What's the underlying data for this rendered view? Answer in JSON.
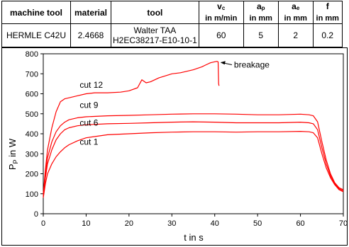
{
  "table": {
    "headers": [
      {
        "main": "machine tool",
        "sub": "",
        "unit": ""
      },
      {
        "main": "material",
        "sub": "",
        "unit": ""
      },
      {
        "main": "tool",
        "sub": "",
        "unit": ""
      },
      {
        "main": "v",
        "sub": "c",
        "unit": "in m/min"
      },
      {
        "main": "a",
        "sub": "p",
        "unit": "in mm"
      },
      {
        "main": "a",
        "sub": "e",
        "unit": "in mm"
      },
      {
        "main": "f",
        "sub": "",
        "unit": "in mm"
      }
    ],
    "row": {
      "machine_tool": "HERMLE C42U",
      "material": "2.4668",
      "tool_line1": "Walter TAA",
      "tool_line2": "H2EC38217-E10-10-1",
      "vc": "60",
      "ap": "5",
      "ae": "2",
      "f": "0.2"
    }
  },
  "chart_data": {
    "type": "line",
    "xlabel": "t in s",
    "ylabel_main": "P",
    "ylabel_sub": "P",
    "ylabel_unit": " in W",
    "xlim": [
      0,
      70
    ],
    "ylim": [
      0,
      800
    ],
    "xticks": [
      0,
      10,
      20,
      30,
      40,
      50,
      60,
      70
    ],
    "yticks": [
      0,
      100,
      200,
      300,
      400,
      500,
      600,
      700,
      800
    ],
    "grid": false,
    "line_color": "#ff0000",
    "series": [
      {
        "name": "cut 1",
        "x": [
          0,
          0.5,
          1,
          2,
          3,
          4,
          5,
          6,
          8,
          10,
          15,
          20,
          25,
          30,
          35,
          40,
          45,
          50,
          55,
          60,
          62,
          63,
          64,
          65,
          66,
          67,
          68,
          69,
          70
        ],
        "y": [
          80,
          150,
          200,
          250,
          285,
          310,
          330,
          345,
          365,
          380,
          395,
          400,
          405,
          408,
          410,
          410,
          408,
          410,
          410,
          412,
          410,
          405,
          380,
          300,
          230,
          180,
          145,
          120,
          110
        ]
      },
      {
        "name": "cut 6",
        "x": [
          0,
          0.5,
          1,
          2,
          3,
          4,
          5,
          6,
          8,
          10,
          15,
          20,
          25,
          30,
          35,
          40,
          45,
          50,
          55,
          60,
          62,
          63,
          64,
          65,
          66,
          67,
          68,
          69,
          70
        ],
        "y": [
          90,
          180,
          250,
          320,
          370,
          400,
          420,
          430,
          440,
          445,
          450,
          452,
          455,
          458,
          460,
          458,
          455,
          455,
          455,
          458,
          455,
          450,
          420,
          330,
          250,
          190,
          150,
          125,
          115
        ]
      },
      {
        "name": "cut 9",
        "x": [
          0,
          0.5,
          1,
          2,
          3,
          4,
          5,
          6,
          8,
          10,
          15,
          20,
          25,
          30,
          35,
          40,
          45,
          50,
          55,
          60,
          62,
          63,
          64,
          65,
          66,
          67,
          68,
          69,
          70
        ],
        "y": [
          100,
          200,
          280,
          360,
          410,
          440,
          458,
          470,
          480,
          485,
          490,
          492,
          495,
          498,
          500,
          500,
          498,
          495,
          495,
          498,
          495,
          490,
          460,
          360,
          270,
          200,
          155,
          130,
          120
        ]
      },
      {
        "name": "cut 12",
        "x": [
          0,
          0.5,
          1,
          2,
          3,
          4,
          5,
          6,
          8,
          10,
          12,
          15,
          18,
          20,
          22,
          23,
          24,
          25,
          27,
          30,
          32,
          35,
          37,
          38,
          39,
          40,
          40.5,
          40.8,
          40.9,
          41
        ],
        "y": [
          100,
          220,
          320,
          430,
          510,
          560,
          575,
          580,
          590,
          600,
          605,
          605,
          608,
          615,
          630,
          670,
          655,
          660,
          680,
          700,
          705,
          720,
          735,
          745,
          755,
          760,
          762,
          760,
          650,
          640
        ]
      }
    ],
    "labels": [
      {
        "text": "cut 12",
        "x": 8.5,
        "y": 630
      },
      {
        "text": "cut 9",
        "x": 8.5,
        "y": 530
      },
      {
        "text": "cut 6",
        "x": 8.5,
        "y": 440
      },
      {
        "text": "cut 1",
        "x": 8.5,
        "y": 345
      }
    ],
    "annotation": {
      "text": "breakage",
      "x": 44.5,
      "y": 745,
      "arrow_to": [
        41,
        760
      ]
    }
  }
}
